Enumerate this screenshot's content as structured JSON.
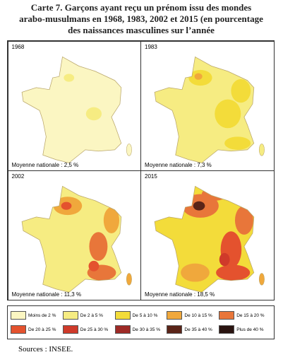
{
  "title": "Carte 7. Garçons ayant reçu un prénom issu des mondes arabo-musulmans en 1968, 1983, 2002 et 2015 (en pourcentage des naissances masculines sur l’année",
  "panels": [
    {
      "year": "1968",
      "note": "Moyenne nationale : 2,5 %"
    },
    {
      "year": "1983",
      "note": "Moyenne nationale : 7,3 %"
    },
    {
      "year": "2002",
      "note": "Moyenne nationale : 11,3 %"
    },
    {
      "year": "2015",
      "note": "Moyenne nationale : 18,5 %"
    }
  ],
  "legend": [
    {
      "label": "Moins de 2 %",
      "color": "#fbf6c2"
    },
    {
      "label": "De 2 à 5 %",
      "color": "#f6ec82"
    },
    {
      "label": "De 5 à 10 %",
      "color": "#f3dc3a"
    },
    {
      "label": "De 10 à 15 %",
      "color": "#f0a83c"
    },
    {
      "label": "De 15 à 20 %",
      "color": "#e8763a"
    },
    {
      "label": "De 20 à 25 %",
      "color": "#e4522e"
    },
    {
      "label": "De 25 à 30 %",
      "color": "#cf3a2a"
    },
    {
      "label": "De 30 à 35 %",
      "color": "#9e2a26"
    },
    {
      "label": "De 35 à 40 %",
      "color": "#5a2418"
    },
    {
      "label": "Plus de 40 %",
      "color": "#2a1410"
    }
  ],
  "source": "Sources : INSEE."
}
